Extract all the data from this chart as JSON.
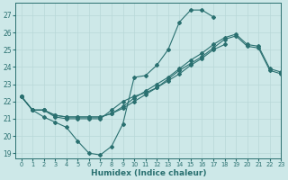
{
  "xlabel": "Humidex (Indice chaleur)",
  "ylabel": "",
  "bg_color": "#cde8e8",
  "grid_color": "#b8d8d8",
  "line_color": "#2a7070",
  "xlim": [
    -0.5,
    23
  ],
  "ylim": [
    18.7,
    27.7
  ],
  "yticks": [
    19,
    20,
    21,
    22,
    23,
    24,
    25,
    26,
    27
  ],
  "xticks": [
    0,
    1,
    2,
    3,
    4,
    5,
    6,
    7,
    8,
    9,
    10,
    11,
    12,
    13,
    14,
    15,
    16,
    17,
    18,
    19,
    20,
    21,
    22,
    23
  ],
  "series": [
    [
      22.3,
      21.5,
      21.1,
      20.8,
      20.5,
      19.7,
      19.0,
      18.9,
      19.4,
      20.7,
      23.4,
      23.5,
      24.1,
      25.0,
      26.6,
      27.3,
      27.3,
      26.9,
      null,
      null,
      null,
      null,
      null,
      null
    ],
    [
      22.3,
      21.5,
      21.5,
      21.1,
      21.0,
      21.0,
      21.0,
      21.0,
      21.5,
      22.0,
      22.3,
      22.5,
      22.8,
      23.2,
      23.6,
      24.1,
      24.5,
      25.0,
      25.3,
      null,
      null,
      null,
      null,
      null
    ],
    [
      22.3,
      21.5,
      21.5,
      21.2,
      21.1,
      21.1,
      21.1,
      21.1,
      21.3,
      21.6,
      22.0,
      22.4,
      22.8,
      23.3,
      23.8,
      24.2,
      24.6,
      25.1,
      25.6,
      25.8,
      25.2,
      25.1,
      23.8,
      23.6
    ],
    [
      22.3,
      21.5,
      21.5,
      21.2,
      21.1,
      21.1,
      21.1,
      21.1,
      21.3,
      21.7,
      22.2,
      22.6,
      23.0,
      23.4,
      23.9,
      24.4,
      24.8,
      25.3,
      25.7,
      25.9,
      25.3,
      25.2,
      23.9,
      23.7
    ]
  ]
}
